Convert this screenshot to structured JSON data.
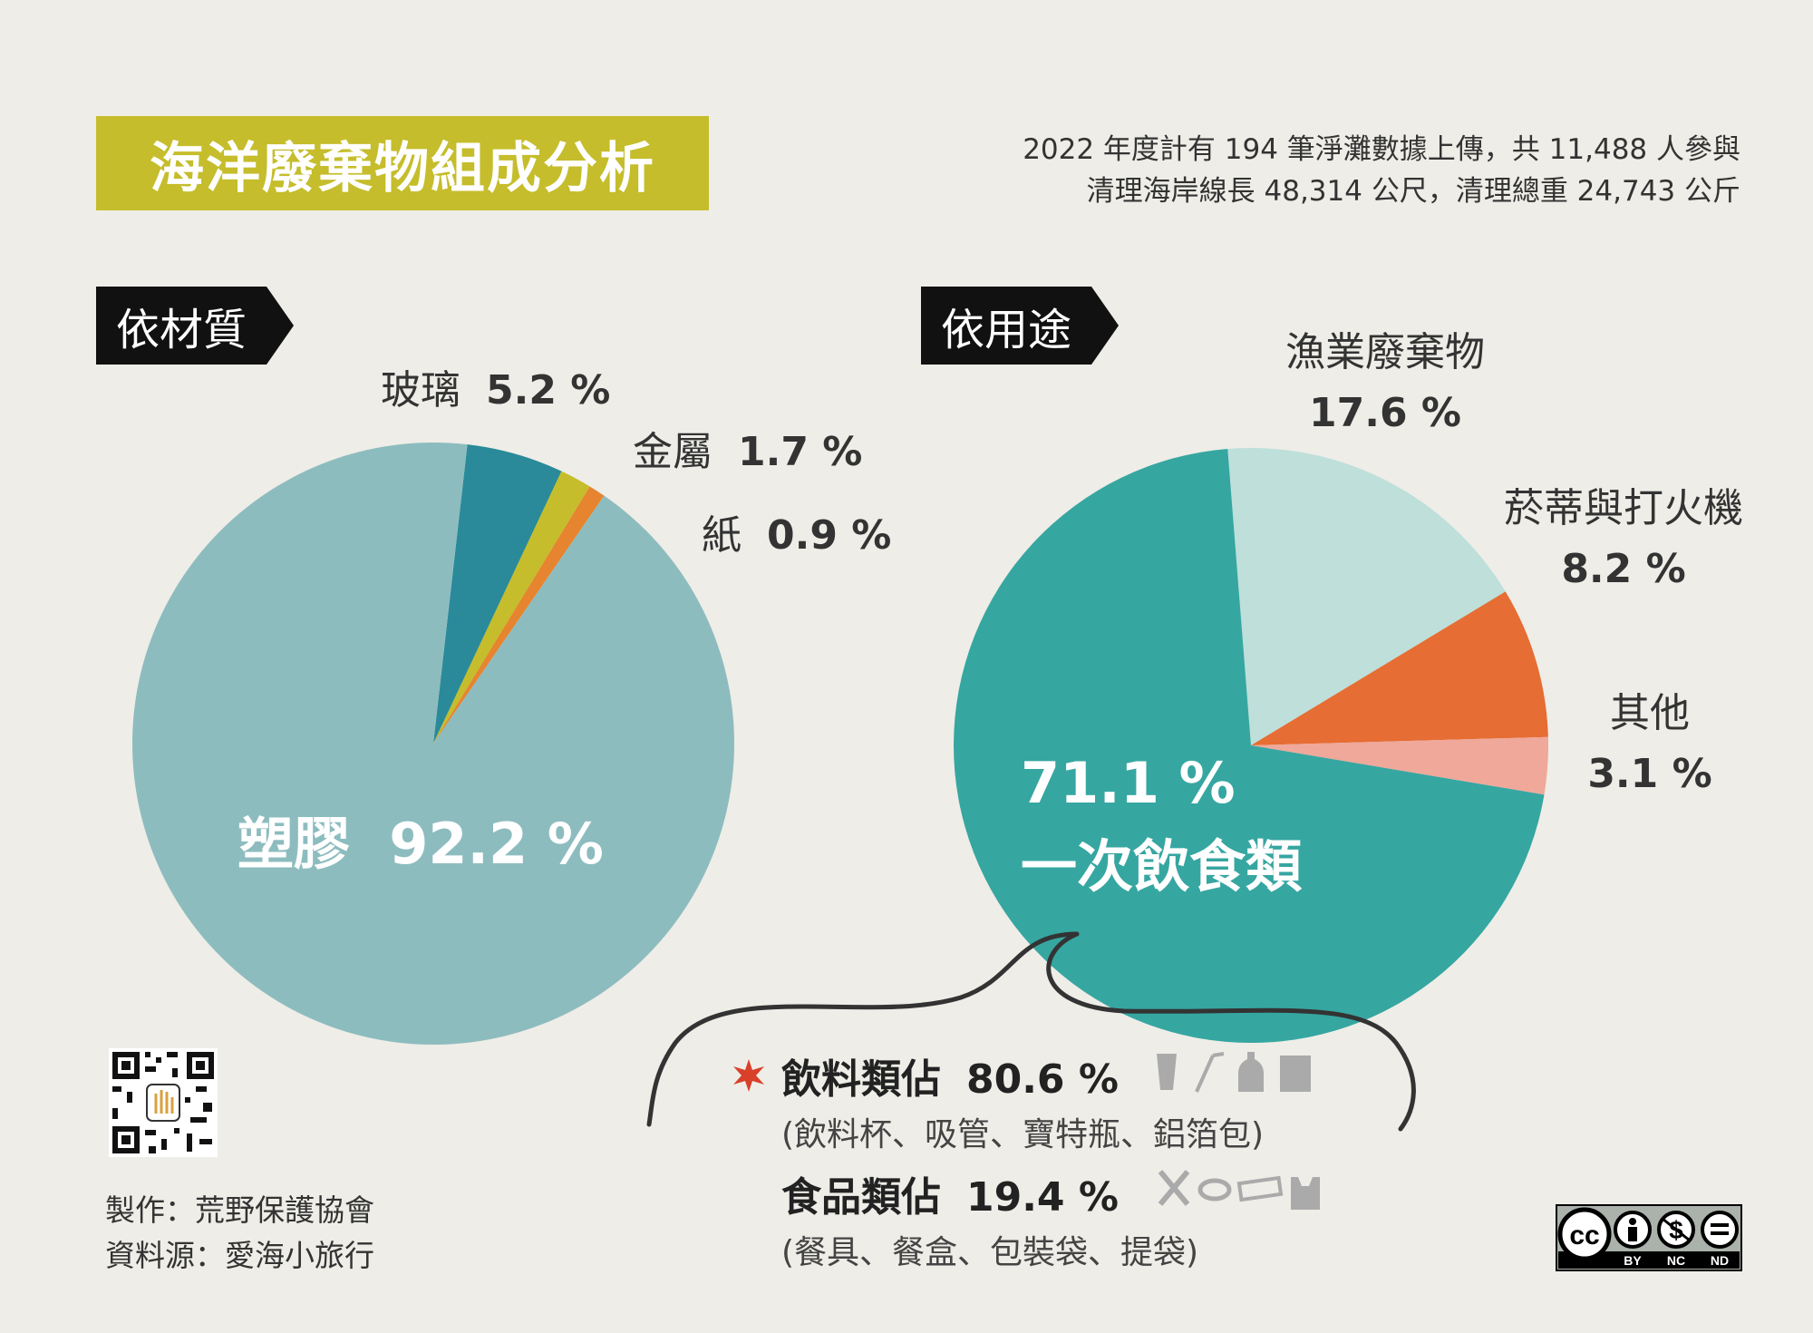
{
  "title": "海洋廢棄物組成分析",
  "summary": {
    "line1": "2022 年度計有 194 筆淨灘數據上傳，共 11,488 人參與",
    "line2": "清理海岸線長 48,314 公尺，清理總重 24,743 公斤"
  },
  "chart_data": [
    {
      "type": "pie",
      "tag": "依材質",
      "slices": [
        {
          "name": "塑膠",
          "value": 92.2,
          "value_label": "92.2 %",
          "color": "#8dbcbf"
        },
        {
          "name": "玻璃",
          "value": 5.2,
          "value_label": "5.2 %",
          "color": "#2a8a9a"
        },
        {
          "name": "金屬",
          "value": 1.7,
          "value_label": "1.7 %",
          "color": "#c5bd2b"
        },
        {
          "name": "紙",
          "value": 0.9,
          "value_label": "0.9 %",
          "color": "#e6842f"
        }
      ]
    },
    {
      "type": "pie",
      "tag": "依用途",
      "slices": [
        {
          "name": "一次飲食類",
          "value": 71.1,
          "value_label": "71.1 %",
          "color": "#36a6a1"
        },
        {
          "name": "漁業廢棄物",
          "value": 17.6,
          "value_label": "17.6 %",
          "color": "#bedfda"
        },
        {
          "name": "菸蒂與打火機",
          "value": 8.2,
          "value_label": "8.2 %",
          "color": "#e66d33"
        },
        {
          "name": "其他",
          "value": 3.1,
          "value_label": "3.1 %",
          "color": "#efa89a"
        }
      ]
    }
  ],
  "breakdown": {
    "drink": {
      "label": "飲料類佔",
      "value": "80.6 %",
      "items": "(飲料杯、吸管、寶特瓶、鋁箔包)"
    },
    "food": {
      "label": "食品類佔",
      "value": "19.4 %",
      "items": "(餐具、餐盒、包裝袋、提袋)"
    }
  },
  "credits": {
    "maker": "製作：荒野保護協會",
    "source": "資料源：愛海小旅行"
  },
  "license": {
    "by": "BY",
    "nc": "NC",
    "nd": "ND",
    "cc": "cc"
  },
  "colors": {
    "accent": "#c5bd2b",
    "star": "#d9402a",
    "icon": "#aaaaaa"
  }
}
